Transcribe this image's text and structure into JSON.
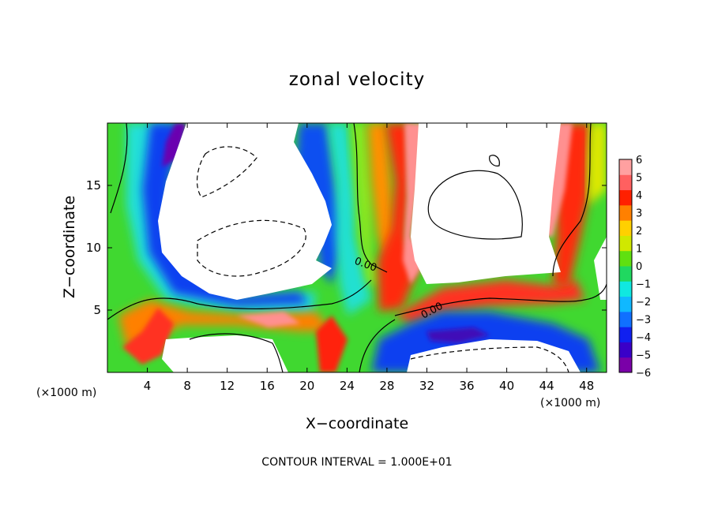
{
  "chart_data": {
    "type": "heatmap",
    "title": "zonal velocity",
    "xlabel": "X−coordinate",
    "ylabel": "Z−coordinate",
    "x_unit_label": "(×1000 m)",
    "x_unit_label_right": "(×1000 m)",
    "x_ticks": [
      4,
      8,
      12,
      16,
      20,
      24,
      28,
      32,
      36,
      40,
      44,
      48
    ],
    "y_ticks": [
      5,
      10,
      15
    ],
    "xlim": [
      0,
      50
    ],
    "ylim": [
      0,
      20
    ],
    "colorbar": {
      "ticks": [
        "6",
        "5",
        "4",
        "3",
        "2",
        "1",
        "0",
        "−1",
        "−2",
        "−3",
        "−4",
        "−5",
        "−6"
      ],
      "range": [
        -6,
        6
      ],
      "colors": [
        "#7a00a8",
        "#3a00c8",
        "#1020f0",
        "#1070ff",
        "#10b8ff",
        "#10e8e0",
        "#20d860",
        "#60e010",
        "#d0e800",
        "#ffd000",
        "#ff8000",
        "#ff2000",
        "#ff6060",
        "#ffa0a0"
      ]
    },
    "contour_labels": [
      "0.00",
      "0.00"
    ],
    "contour_interval_label": "CONTOUR INTERVAL = 1.000E+01",
    "white_regions_note": "values outside colorbar range are shown white"
  }
}
